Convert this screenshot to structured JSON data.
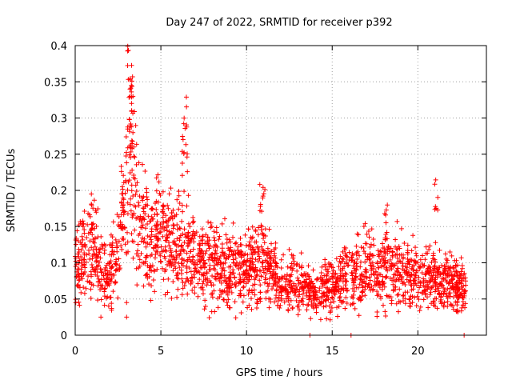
{
  "chart_data": {
    "type": "scatter",
    "title": "Day 247 of 2022, SRMTID for receiver p392",
    "xlabel": "GPS time / hours",
    "ylabel": "SRMTID / TECUs",
    "xlim": [
      0,
      24
    ],
    "ylim": [
      0,
      0.4
    ],
    "grid": true,
    "marker": "+",
    "color": "#ff0000",
    "x_ticks": [
      {
        "value": 0,
        "label": "0"
      },
      {
        "value": 5,
        "label": "5"
      },
      {
        "value": 10,
        "label": "10"
      },
      {
        "value": 15,
        "label": "15"
      },
      {
        "value": 20,
        "label": "20"
      }
    ],
    "y_ticks": [
      {
        "value": 0,
        "label": "0"
      },
      {
        "value": 0.05,
        "label": "0.05"
      },
      {
        "value": 0.1,
        "label": "0.1"
      },
      {
        "value": 0.15,
        "label": "0.15"
      },
      {
        "value": 0.2,
        "label": "0.2"
      },
      {
        "value": 0.25,
        "label": "0.25"
      },
      {
        "value": 0.3,
        "label": "0.3"
      },
      {
        "value": 0.35,
        "label": "0.35"
      },
      {
        "value": 0.4,
        "label": "0.4"
      }
    ],
    "series": [
      {
        "name": "SRMTID",
        "trend": [
          [
            0.0,
            0.1
          ],
          [
            0.5,
            0.11
          ],
          [
            1.0,
            0.12
          ],
          [
            1.5,
            0.09
          ],
          [
            2.0,
            0.08
          ],
          [
            2.5,
            0.13
          ],
          [
            3.0,
            0.19
          ],
          [
            3.3,
            0.24
          ],
          [
            3.8,
            0.14
          ],
          [
            4.5,
            0.13
          ],
          [
            5.0,
            0.14
          ],
          [
            5.5,
            0.13
          ],
          [
            6.0,
            0.12
          ],
          [
            6.5,
            0.12
          ],
          [
            7.0,
            0.11
          ],
          [
            8.0,
            0.1
          ],
          [
            9.0,
            0.09
          ],
          [
            10.0,
            0.09
          ],
          [
            11.0,
            0.1
          ],
          [
            12.0,
            0.07
          ],
          [
            13.0,
            0.07
          ],
          [
            14.0,
            0.06
          ],
          [
            15.0,
            0.07
          ],
          [
            16.0,
            0.08
          ],
          [
            17.0,
            0.09
          ],
          [
            18.0,
            0.09
          ],
          [
            19.0,
            0.09
          ],
          [
            20.0,
            0.08
          ],
          [
            21.0,
            0.08
          ],
          [
            22.0,
            0.07
          ],
          [
            22.8,
            0.06
          ]
        ],
        "spikes": [
          {
            "x": 3.2,
            "low": 0.25,
            "high": 0.4,
            "count": 30
          },
          {
            "x": 6.4,
            "low": 0.22,
            "high": 0.33,
            "count": 18
          },
          {
            "x": 10.9,
            "low": 0.14,
            "high": 0.21,
            "count": 12
          },
          {
            "x": 18.2,
            "low": 0.13,
            "high": 0.185,
            "count": 8
          },
          {
            "x": 21.1,
            "low": 0.16,
            "high": 0.215,
            "count": 7
          },
          {
            "x": 1.0,
            "low": 0.15,
            "high": 0.205,
            "count": 6
          },
          {
            "x": 4.6,
            "low": 0.15,
            "high": 0.19,
            "count": 6
          }
        ],
        "outliers": [
          [
            13.7,
            0.0
          ],
          [
            16.1,
            0.0
          ],
          [
            22.7,
            0.0
          ],
          [
            3.0,
            0.025
          ],
          [
            3.0,
            0.045
          ],
          [
            1.5,
            0.025
          ]
        ]
      }
    ]
  }
}
